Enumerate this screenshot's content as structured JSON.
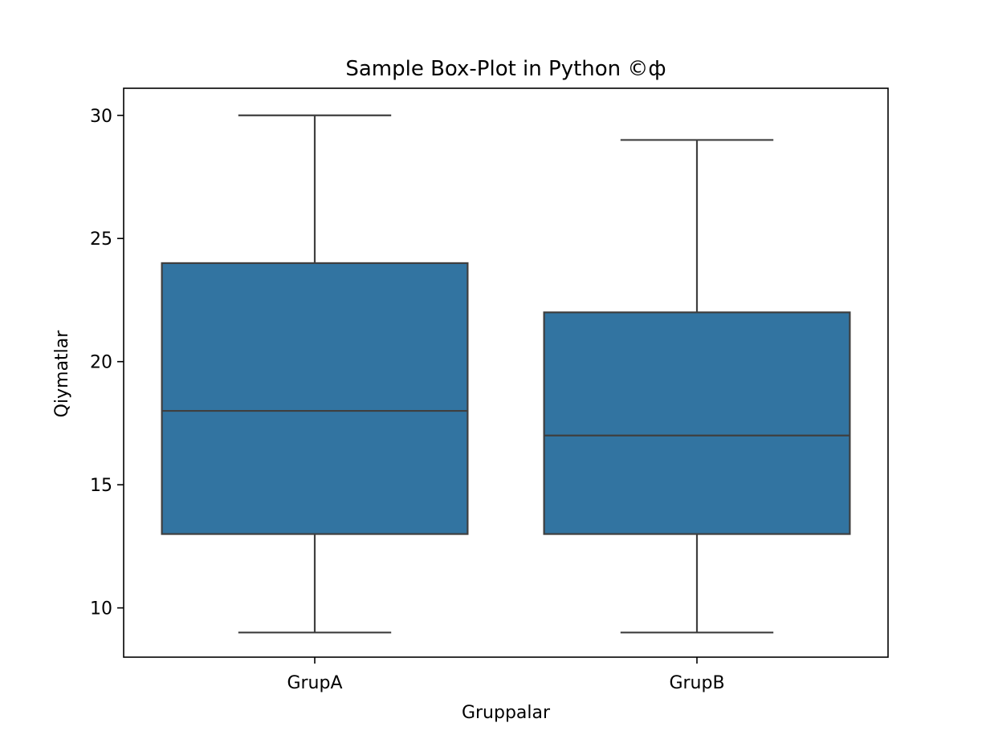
{
  "chart_data": {
    "type": "box",
    "title": "Sample Box-Plot in Python ©ф",
    "xlabel": "Gruppalar",
    "ylabel": "Qiymatlar",
    "categories": [
      "GrupA",
      "GrupB"
    ],
    "boxes": [
      {
        "category": "GrupA",
        "whisker_low": 9,
        "q1": 13,
        "median": 18,
        "q3": 24,
        "whisker_high": 30
      },
      {
        "category": "GrupB",
        "whisker_low": 9,
        "q1": 13,
        "median": 17,
        "q3": 22,
        "whisker_high": 29
      }
    ],
    "ylim": [
      8,
      31.1
    ],
    "yticks": [
      10,
      15,
      20,
      25,
      30
    ],
    "grid": false,
    "box_color": "#3274a1",
    "line_color": "#3f3f3f"
  }
}
